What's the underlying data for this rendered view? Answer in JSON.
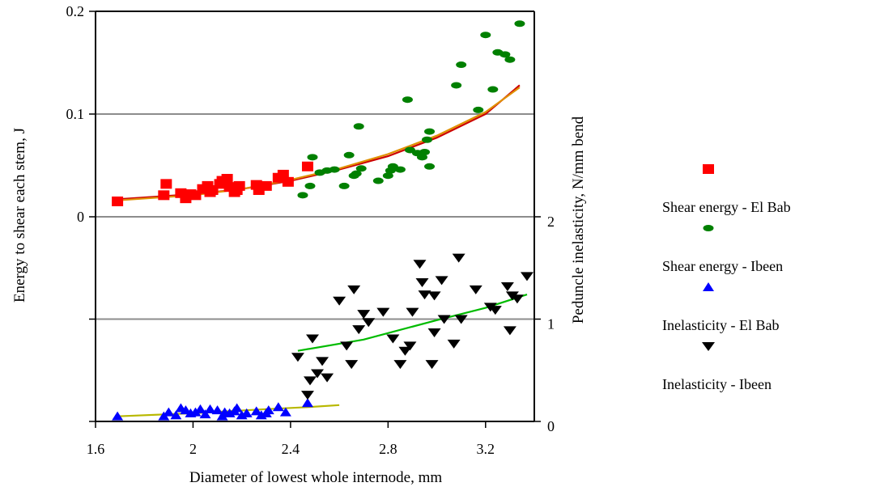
{
  "chart_data": {
    "type": "scatter",
    "xlabel": "Diameter of lowest whole internode, mm",
    "ylabel_left": "Energy to shear each stem, J",
    "ylabel_right": "Peduncle inelasticity, N/mm bend",
    "xlim": [
      1.6,
      3.4
    ],
    "x_ticks": [
      1.6,
      2,
      2.4,
      2.8,
      3.2
    ],
    "x_tick_labels": [
      "1.6",
      "2",
      "2.4",
      "2.8",
      "3.2"
    ],
    "energy_axis": {
      "lim": [
        0,
        0.2
      ],
      "panel": "upper",
      "ticks": [
        0,
        0.1,
        0.2
      ],
      "tick_labels": [
        "0",
        "0.1",
        "0.2"
      ]
    },
    "inelasticity_axis": {
      "lim": [
        0,
        2
      ],
      "panel": "lower",
      "ticks": [
        0,
        1,
        2
      ],
      "tick_labels": [
        "0",
        "1",
        "2"
      ]
    },
    "grid": "horizontal gridlines at tick values",
    "legend": {
      "placement": "right",
      "entries": [
        "Shear energy - El Bab",
        "Shear energy - Ibeen",
        "Inelasticity - El Bab",
        "Inelasticity - Ibeen"
      ]
    },
    "colors": {
      "shear_el_bab": "#ff0000",
      "shear_ibeen": "#008000",
      "inel_el_bab": "#0000ff",
      "inel_ibeen": "#000000",
      "trend_shear_red": "#cc0000",
      "trend_shear_orange": "#e09000",
      "trend_inel_el_bab": "#b8b800",
      "trend_inel_ibeen": "#00bb00"
    },
    "series": [
      {
        "name": "Shear energy - El Bab",
        "axis": "energy",
        "marker": "square",
        "color": "#ff0000",
        "points": [
          [
            1.69,
            0.015
          ],
          [
            1.88,
            0.021
          ],
          [
            1.89,
            0.032
          ],
          [
            1.95,
            0.023
          ],
          [
            1.97,
            0.018
          ],
          [
            1.99,
            0.022
          ],
          [
            2.01,
            0.021
          ],
          [
            2.04,
            0.027
          ],
          [
            2.06,
            0.03
          ],
          [
            2.07,
            0.024
          ],
          [
            2.08,
            0.026
          ],
          [
            2.11,
            0.032
          ],
          [
            2.12,
            0.035
          ],
          [
            2.14,
            0.037
          ],
          [
            2.15,
            0.029
          ],
          [
            2.17,
            0.024
          ],
          [
            2.18,
            0.026
          ],
          [
            2.19,
            0.03
          ],
          [
            2.26,
            0.031
          ],
          [
            2.27,
            0.026
          ],
          [
            2.3,
            0.03
          ],
          [
            2.35,
            0.038
          ],
          [
            2.37,
            0.041
          ],
          [
            2.39,
            0.034
          ],
          [
            2.47,
            0.049
          ]
        ]
      },
      {
        "name": "Shear energy - Ibeen",
        "axis": "energy",
        "marker": "ellipse",
        "color": "#008000",
        "points": [
          [
            2.45,
            0.021
          ],
          [
            2.48,
            0.03
          ],
          [
            2.49,
            0.058
          ],
          [
            2.52,
            0.043
          ],
          [
            2.55,
            0.045
          ],
          [
            2.58,
            0.046
          ],
          [
            2.62,
            0.03
          ],
          [
            2.64,
            0.06
          ],
          [
            2.66,
            0.04
          ],
          [
            2.67,
            0.042
          ],
          [
            2.68,
            0.088
          ],
          [
            2.69,
            0.047
          ],
          [
            2.76,
            0.035
          ],
          [
            2.8,
            0.04
          ],
          [
            2.81,
            0.045
          ],
          [
            2.82,
            0.049
          ],
          [
            2.85,
            0.046
          ],
          [
            2.88,
            0.114
          ],
          [
            2.89,
            0.065
          ],
          [
            2.92,
            0.062
          ],
          [
            2.94,
            0.058
          ],
          [
            2.95,
            0.063
          ],
          [
            2.96,
            0.075
          ],
          [
            2.97,
            0.083
          ],
          [
            2.97,
            0.049
          ],
          [
            3.08,
            0.128
          ],
          [
            3.1,
            0.148
          ],
          [
            3.17,
            0.104
          ],
          [
            3.2,
            0.177
          ],
          [
            3.23,
            0.124
          ],
          [
            3.25,
            0.16
          ],
          [
            3.28,
            0.158
          ],
          [
            3.3,
            0.153
          ],
          [
            3.34,
            0.188
          ]
        ]
      },
      {
        "name": "Inelasticity - El Bab",
        "axis": "inelasticity",
        "marker": "triangle-up",
        "color": "#0000ff",
        "points": [
          [
            1.69,
            0.05
          ],
          [
            1.88,
            0.05
          ],
          [
            1.9,
            0.09
          ],
          [
            1.93,
            0.06
          ],
          [
            1.95,
            0.13
          ],
          [
            1.97,
            0.11
          ],
          [
            1.99,
            0.08
          ],
          [
            2.01,
            0.09
          ],
          [
            2.03,
            0.12
          ],
          [
            2.05,
            0.07
          ],
          [
            2.07,
            0.12
          ],
          [
            2.1,
            0.11
          ],
          [
            2.12,
            0.05
          ],
          [
            2.13,
            0.09
          ],
          [
            2.15,
            0.08
          ],
          [
            2.17,
            0.1
          ],
          [
            2.18,
            0.13
          ],
          [
            2.2,
            0.06
          ],
          [
            2.22,
            0.08
          ],
          [
            2.26,
            0.1
          ],
          [
            2.28,
            0.06
          ],
          [
            2.3,
            0.08
          ],
          [
            2.31,
            0.11
          ],
          [
            2.35,
            0.14
          ],
          [
            2.38,
            0.09
          ],
          [
            2.47,
            0.18
          ]
        ]
      },
      {
        "name": "Inelasticity - Ibeen",
        "axis": "inelasticity",
        "marker": "triangle-down",
        "color": "#000000",
        "points": [
          [
            2.43,
            0.63
          ],
          [
            2.47,
            0.26
          ],
          [
            2.48,
            0.4
          ],
          [
            2.49,
            0.81
          ],
          [
            2.51,
            0.47
          ],
          [
            2.53,
            0.59
          ],
          [
            2.55,
            0.43
          ],
          [
            2.6,
            1.18
          ],
          [
            2.63,
            0.74
          ],
          [
            2.65,
            0.56
          ],
          [
            2.66,
            1.29
          ],
          [
            2.68,
            0.9
          ],
          [
            2.7,
            1.05
          ],
          [
            2.72,
            0.97
          ],
          [
            2.78,
            1.07
          ],
          [
            2.82,
            0.81
          ],
          [
            2.85,
            0.56
          ],
          [
            2.87,
            0.69
          ],
          [
            2.89,
            0.74
          ],
          [
            2.9,
            1.07
          ],
          [
            2.93,
            1.54
          ],
          [
            2.94,
            1.36
          ],
          [
            2.95,
            1.24
          ],
          [
            2.98,
            0.56
          ],
          [
            2.99,
            0.87
          ],
          [
            2.99,
            1.23
          ],
          [
            3.02,
            1.38
          ],
          [
            3.03,
            1.0
          ],
          [
            3.07,
            0.76
          ],
          [
            3.09,
            1.6
          ],
          [
            3.1,
            1.0
          ],
          [
            3.16,
            1.29
          ],
          [
            3.22,
            1.12
          ],
          [
            3.24,
            1.09
          ],
          [
            3.29,
            1.32
          ],
          [
            3.3,
            0.89
          ],
          [
            3.31,
            1.23
          ],
          [
            3.33,
            1.2
          ],
          [
            3.37,
            1.42
          ]
        ]
      }
    ],
    "trend_lines": [
      {
        "target": "Shear energy",
        "axis": "energy",
        "color": "#cc0000",
        "points": [
          [
            1.69,
            0.017
          ],
          [
            2.0,
            0.022
          ],
          [
            2.2,
            0.027
          ],
          [
            2.4,
            0.035
          ],
          [
            2.6,
            0.046
          ],
          [
            2.8,
            0.059
          ],
          [
            3.0,
            0.077
          ],
          [
            3.2,
            0.1
          ],
          [
            3.34,
            0.128
          ]
        ]
      },
      {
        "target": "Shear energy",
        "axis": "energy",
        "color": "#e09000",
        "points": [
          [
            1.69,
            0.016
          ],
          [
            2.0,
            0.021
          ],
          [
            2.2,
            0.027
          ],
          [
            2.4,
            0.036
          ],
          [
            2.6,
            0.047
          ],
          [
            2.8,
            0.061
          ],
          [
            3.0,
            0.079
          ],
          [
            3.2,
            0.102
          ],
          [
            3.34,
            0.126
          ]
        ]
      },
      {
        "target": "Inelasticity - El Bab",
        "axis": "inelasticity",
        "color": "#b8b800",
        "points": [
          [
            1.69,
            0.05
          ],
          [
            2.0,
            0.08
          ],
          [
            2.3,
            0.12
          ],
          [
            2.47,
            0.14
          ],
          [
            2.6,
            0.16
          ]
        ]
      },
      {
        "target": "Inelasticity - Ibeen",
        "axis": "inelasticity",
        "color": "#00bb00",
        "points": [
          [
            2.43,
            0.69
          ],
          [
            2.7,
            0.8
          ],
          [
            3.0,
            0.99
          ],
          [
            3.2,
            1.11
          ],
          [
            3.37,
            1.24
          ]
        ]
      }
    ]
  }
}
